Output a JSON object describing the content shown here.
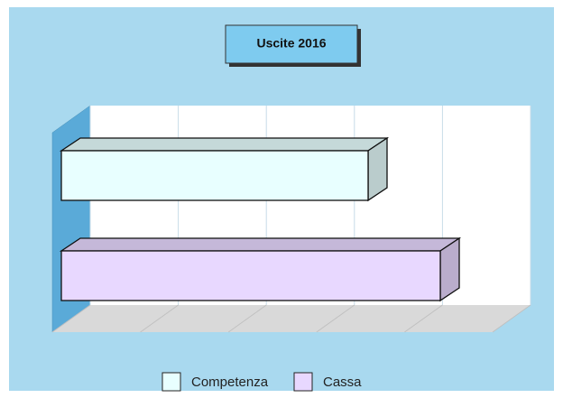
{
  "chart_data": {
    "type": "bar3d_horizontal",
    "title": "Uscite 2016",
    "series": [
      {
        "name": "Competenza",
        "color": "#e8ffff",
        "values": [
          3.4
        ]
      },
      {
        "name": "Cassa",
        "color": "#e8d8ff",
        "values": [
          4.2
        ]
      }
    ],
    "xlim": [
      0,
      5
    ],
    "xticks": [
      0,
      1,
      2,
      3,
      4,
      5
    ],
    "grid": true,
    "legend": "bottom"
  }
}
